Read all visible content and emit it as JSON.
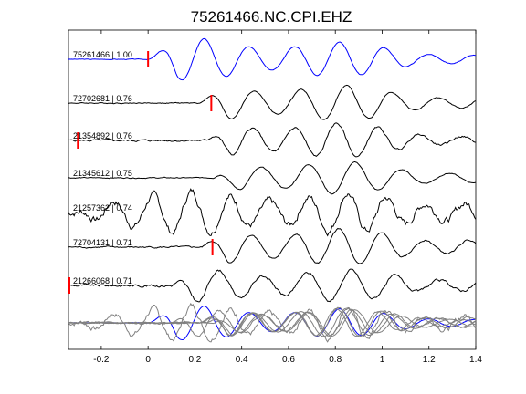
{
  "chart_data": {
    "type": "line",
    "title": "75261466.NC.CPI.EHZ",
    "xlabel": "",
    "ylabel": "",
    "xlim": [
      -0.34,
      1.4
    ],
    "xticks": [
      -0.2,
      0,
      0.2,
      0.4,
      0.6,
      0.8,
      1,
      1.2,
      1.4
    ],
    "xtick_labels": [
      "-0.2",
      "0",
      "0.2",
      "0.4",
      "0.6",
      "0.8",
      "1",
      "1.2",
      "1.4"
    ],
    "grid": false,
    "legend": "none",
    "colors": {
      "reference": "#0000ff",
      "trace": "#000000",
      "stack": "#808080",
      "pick": "#ff0000"
    },
    "series": [
      {
        "name": "75261466 | 1.00",
        "pick_time": 0.0,
        "onset": 0.0,
        "amp": 1.0,
        "freq": 5.2,
        "phase": 0.0,
        "noise": 0.02,
        "decay": 0.55
      },
      {
        "name": "72702681 | 0.76",
        "pick_time": 0.27,
        "onset": 0.22,
        "amp": 1.0,
        "freq": 5.1,
        "phase": 0.3,
        "noise": 0.03,
        "decay": 0.6
      },
      {
        "name": "21354892 | 0.76",
        "pick_time": -0.3,
        "onset": 0.25,
        "amp": 1.0,
        "freq": 5.6,
        "phase": 0.9,
        "noise": 0.06,
        "decay": 0.55
      },
      {
        "name": "21345612 | 0.75",
        "pick_time": null,
        "onset": 0.28,
        "amp": 0.9,
        "freq": 5.0,
        "phase": 1.4,
        "noise": 0.03,
        "decay": 0.6
      },
      {
        "name": "21257362 | 0.74",
        "pick_time": null,
        "onset": -0.3,
        "amp": 1.0,
        "freq": 6.0,
        "phase": 2.1,
        "noise": 0.22,
        "decay": 0.9
      },
      {
        "name": "72704131 | 0.71",
        "pick_time": 0.275,
        "onset": 0.23,
        "amp": 1.0,
        "freq": 5.4,
        "phase": 0.6,
        "noise": 0.05,
        "decay": 0.7
      },
      {
        "name": "21266068 | 0.71",
        "pick_time": -0.34,
        "onset": 0.1,
        "amp": 0.85,
        "freq": 5.3,
        "phase": 1.1,
        "noise": 0.08,
        "decay": 0.65
      }
    ]
  }
}
